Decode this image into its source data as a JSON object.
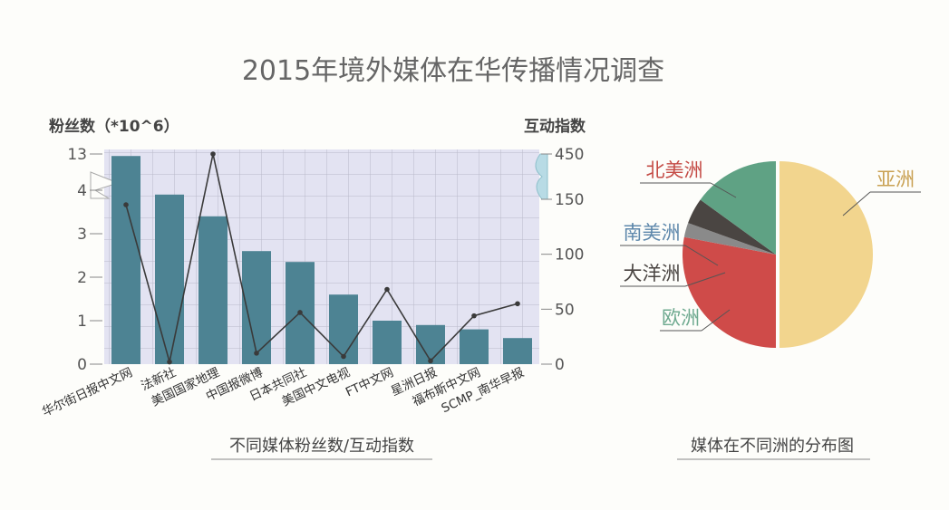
{
  "page_title": "2015年境外媒体在华传播情况调查",
  "chart_data": [
    {
      "type": "bar",
      "caption": "不同媒体粉丝数/互动指数",
      "categories": [
        "华尔街日报中文网",
        "法新社",
        "美国国家地理",
        "中国报微博",
        "日本共同社",
        "美国中文电视",
        "FT中文网",
        "星洲日报",
        "福布斯中文网",
        "SCMP_南华早报"
      ],
      "ylabel_left": "粉丝数（*10^6）",
      "ylabel_right": "互动指数",
      "left_ticks": [
        "0",
        "1",
        "2",
        "3",
        "4",
        "13"
      ],
      "left_axis_break": "4 → 13",
      "right_ticks": [
        "0",
        "50",
        "100",
        "150",
        "450"
      ],
      "right_axis_break": "150 → 450",
      "series": [
        {
          "name": "粉丝数",
          "kind": "bar",
          "color": "#4d8393",
          "values": [
            12.5,
            3.9,
            3.4,
            2.6,
            2.35,
            1.6,
            1.0,
            0.9,
            0.8,
            0.6
          ]
        },
        {
          "name": "互动指数",
          "kind": "line",
          "color": "#3a3a3a",
          "values": [
            145,
            2,
            450,
            10,
            47,
            7,
            68,
            3,
            44,
            55
          ]
        }
      ]
    },
    {
      "type": "pie",
      "caption": "媒体在不同洲的分布图",
      "labels": [
        "亚洲",
        "北美洲",
        "南美洲",
        "大洋洲",
        "欧洲"
      ],
      "values": [
        50,
        28,
        2.5,
        4.5,
        15
      ],
      "colors": [
        "#f2d58e",
        "#cf4b49",
        "#8a8a8a",
        "#4a4542",
        "#5fa284"
      ],
      "label_colors": [
        "#c9a153",
        "#c44b45",
        "#5d87ab",
        "#4a4542",
        "#6faa90"
      ]
    }
  ]
}
